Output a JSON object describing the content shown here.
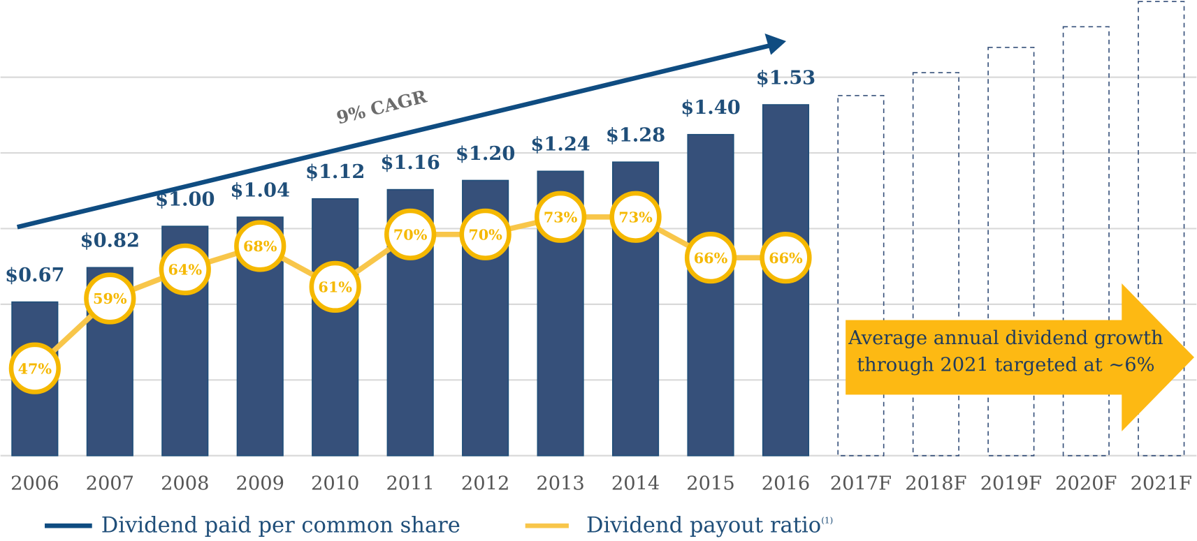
{
  "chart_data": {
    "type": "bar",
    "categories": [
      "2006",
      "2007",
      "2008",
      "2009",
      "2010",
      "2011",
      "2012",
      "2013",
      "2014",
      "2015",
      "2016",
      "2017F",
      "2018F",
      "2019F",
      "2020F",
      "2021F"
    ],
    "series": [
      {
        "name": "Dividend paid per common share",
        "color": "#36507a",
        "legend_color": "#0f4c81",
        "values": [
          0.67,
          0.82,
          1.0,
          1.04,
          1.12,
          1.16,
          1.2,
          1.24,
          1.28,
          1.4,
          1.53,
          null,
          null,
          null,
          null,
          null
        ],
        "value_labels": [
          "$0.67",
          "$0.82",
          "$1.00",
          "$1.04",
          "$1.12",
          "$1.16",
          "$1.20",
          "$1.24",
          "$1.28",
          "$1.40",
          "$1.53",
          null,
          null,
          null,
          null,
          null
        ],
        "forecast_values": [
          null,
          null,
          null,
          null,
          null,
          null,
          null,
          null,
          null,
          null,
          null,
          1.57,
          1.67,
          1.78,
          1.87,
          1.98
        ]
      },
      {
        "name": "Dividend payout ratio",
        "name_note": "(1)",
        "type": "line",
        "axis": "y2",
        "color": "#f5b800",
        "line_color": "#f8c64a",
        "values": [
          47,
          59,
          64,
          68,
          61,
          70,
          70,
          73,
          73,
          66,
          66,
          null,
          null,
          null,
          null,
          null
        ],
        "value_labels": [
          "47%",
          "59%",
          "64%",
          "68%",
          "61%",
          "70%",
          "70%",
          "73%",
          "73%",
          "66%",
          "66%",
          null,
          null,
          null,
          null,
          null
        ]
      }
    ],
    "ylim": [
      0,
      1.98
    ],
    "yticks": [
      0.33,
      0.66,
      0.99,
      1.32,
      1.65
    ],
    "y2lim": [
      32,
      110
    ],
    "grid": true,
    "annotations": {
      "cagr": "9% CAGR",
      "target": [
        "Average annual dividend growth",
        "through 2021 targeted at ~6%"
      ]
    },
    "legend": "bottom"
  }
}
